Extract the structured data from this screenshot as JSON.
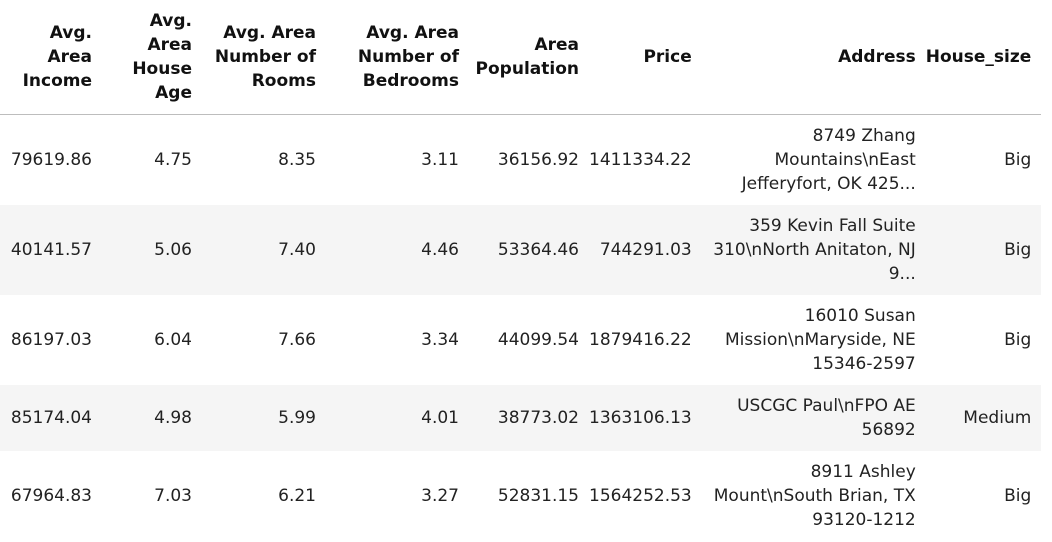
{
  "table": {
    "columns": [
      "Avg. Area Income",
      "Avg. Area House Age",
      "Avg. Area Number of Rooms",
      "Avg. Area Number of Bedrooms",
      "Area Population",
      "Price",
      "Address",
      "House_size"
    ],
    "rows": [
      [
        "79619.86",
        "4.75",
        "8.35",
        "3.11",
        "36156.92",
        "1411334.22",
        "8749 Zhang Mountains\\nEast Jefferyfort, OK 425...",
        "Big"
      ],
      [
        "40141.57",
        "5.06",
        "7.40",
        "4.46",
        "53364.46",
        "744291.03",
        "359 Kevin Fall Suite 310\\nNorth Anitaton, NJ 9...",
        "Big"
      ],
      [
        "86197.03",
        "6.04",
        "7.66",
        "3.34",
        "44099.54",
        "1879416.22",
        "16010 Susan Mission\\nMaryside, NE 15346-2597",
        "Big"
      ],
      [
        "85174.04",
        "4.98",
        "5.99",
        "4.01",
        "38773.02",
        "1363106.13",
        "USCGC Paul\\nFPO AE 56892",
        "Medium"
      ],
      [
        "67964.83",
        "7.03",
        "6.21",
        "3.27",
        "52831.15",
        "1564252.53",
        "8911 Ashley Mount\\nSouth Brian, TX 93120-1212",
        "Big"
      ]
    ]
  }
}
